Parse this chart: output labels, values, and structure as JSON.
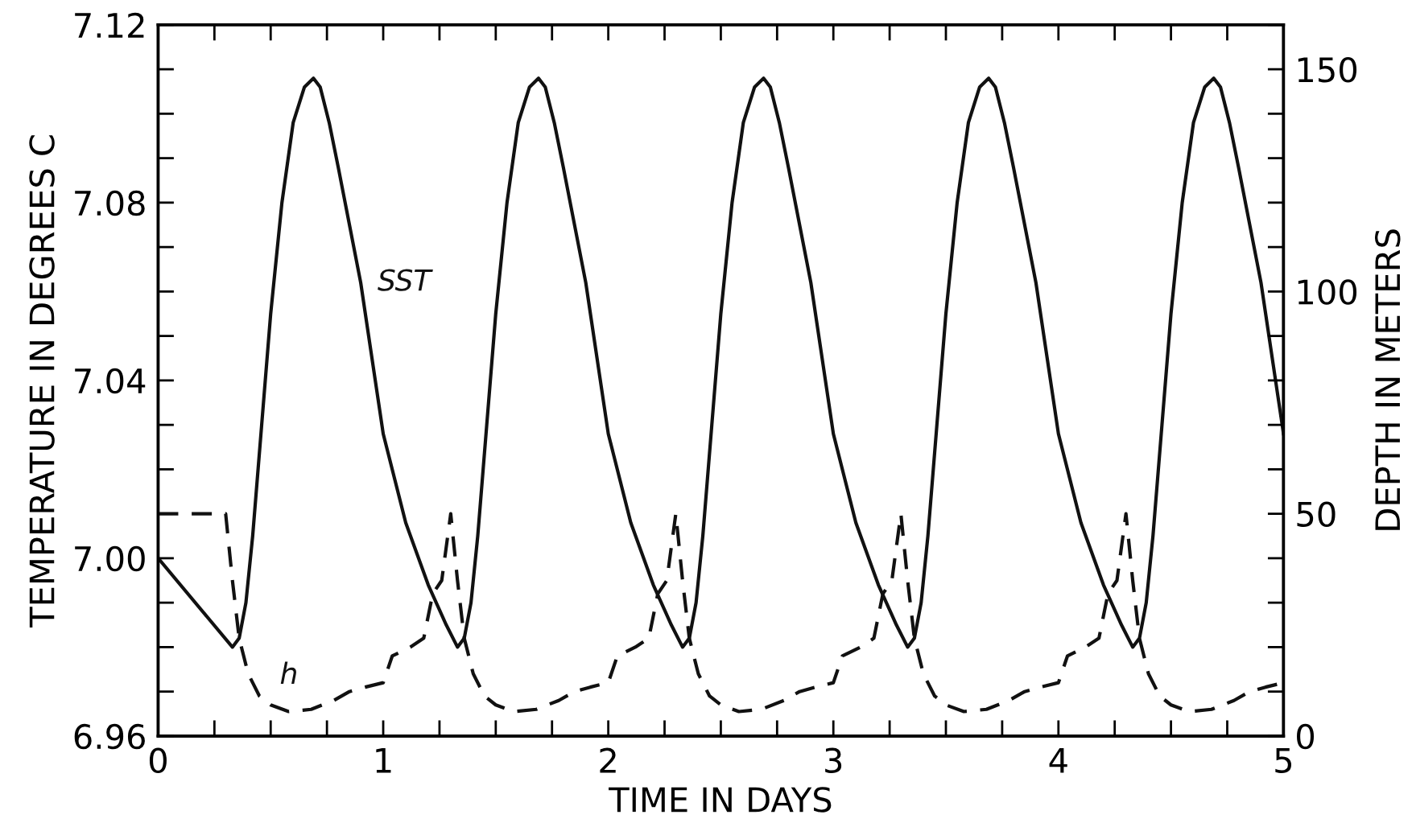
{
  "chart_data": {
    "type": "line",
    "xlabel": "TIME IN DAYS",
    "ylabel": "TEMPERATURE IN DEGREES C",
    "y2label": "DEPTH IN METERS",
    "xlim": [
      0,
      5
    ],
    "xticks": [
      0,
      1,
      2,
      3,
      4,
      5
    ],
    "ylim": [
      6.96,
      7.12
    ],
    "yticks": [
      6.96,
      {
        "value": 7.0,
        "label": "7.00"
      },
      7.04,
      7.08,
      7.12
    ],
    "y2lim": [
      0,
      160
    ],
    "y2ticks": [
      0,
      50,
      100,
      150
    ],
    "grid": false,
    "legend": false,
    "series": [
      {
        "name": "SST",
        "color": "#111111",
        "line_style": "solid",
        "x": [
          0,
          0.33,
          0.36,
          0.39,
          0.42,
          0.46,
          0.5,
          0.55,
          0.6,
          0.65,
          0.69,
          0.72,
          0.76,
          0.8,
          0.9,
          1.0,
          1.1,
          1.2,
          1.28,
          1.33,
          1.36,
          1.39,
          1.42,
          1.46,
          1.5,
          1.55,
          1.6,
          1.65,
          1.69,
          1.72,
          1.76,
          1.8,
          1.9,
          2.0,
          2.1,
          2.2,
          2.28,
          2.33,
          2.36,
          2.39,
          2.42,
          2.46,
          2.5,
          2.55,
          2.6,
          2.65,
          2.69,
          2.72,
          2.76,
          2.8,
          2.9,
          3.0,
          3.1,
          3.2,
          3.28,
          3.33,
          3.36,
          3.39,
          3.42,
          3.46,
          3.5,
          3.55,
          3.6,
          3.65,
          3.69,
          3.72,
          3.76,
          3.8,
          3.9,
          4.0,
          4.1,
          4.2,
          4.28,
          4.33,
          4.36,
          4.39,
          4.42,
          4.46,
          4.5,
          4.55,
          4.6,
          4.65,
          4.69,
          4.72,
          4.76,
          4.8,
          4.9,
          5.0
        ],
        "values": [
          7.0,
          6.98,
          6.982,
          6.99,
          7.005,
          7.03,
          7.055,
          7.08,
          7.098,
          7.106,
          7.108,
          7.106,
          7.098,
          7.088,
          7.062,
          7.028,
          7.008,
          6.994,
          6.985,
          6.98,
          6.982,
          6.99,
          7.005,
          7.03,
          7.055,
          7.08,
          7.098,
          7.106,
          7.108,
          7.106,
          7.098,
          7.088,
          7.062,
          7.028,
          7.008,
          6.994,
          6.985,
          6.98,
          6.982,
          6.99,
          7.005,
          7.03,
          7.055,
          7.08,
          7.098,
          7.106,
          7.108,
          7.106,
          7.098,
          7.088,
          7.062,
          7.028,
          7.008,
          6.994,
          6.985,
          6.98,
          6.982,
          6.99,
          7.005,
          7.03,
          7.055,
          7.08,
          7.098,
          7.106,
          7.108,
          7.106,
          7.098,
          7.088,
          7.062,
          7.028,
          7.008,
          6.994,
          6.985,
          6.98,
          6.982,
          6.99,
          7.005,
          7.03,
          7.055,
          7.08,
          7.098,
          7.106,
          7.108,
          7.106,
          7.098,
          7.088,
          7.062,
          7.028
        ]
      },
      {
        "name": "h",
        "color": "#111111",
        "line_style": "dashed",
        "axis": "y2",
        "x": [
          0,
          0.3,
          0.33,
          0.36,
          0.4,
          0.45,
          0.5,
          0.58,
          0.68,
          0.78,
          0.85,
          0.92,
          1.0,
          1.04,
          1.12,
          1.18,
          1.22,
          1.26,
          1.3,
          1.33,
          1.36,
          1.4,
          1.45,
          1.5,
          1.58,
          1.68,
          1.78,
          1.85,
          1.92,
          2.0,
          2.04,
          2.12,
          2.18,
          2.22,
          2.26,
          2.3,
          2.33,
          2.36,
          2.4,
          2.45,
          2.5,
          2.58,
          2.68,
          2.78,
          2.85,
          2.92,
          3.0,
          3.04,
          3.12,
          3.18,
          3.22,
          3.26,
          3.3,
          3.33,
          3.36,
          3.4,
          3.45,
          3.5,
          3.58,
          3.68,
          3.78,
          3.85,
          3.92,
          4.0,
          4.04,
          4.12,
          4.18,
          4.22,
          4.26,
          4.3,
          4.33,
          4.36,
          4.4,
          4.45,
          4.5,
          4.58,
          4.68,
          4.78,
          4.85,
          4.92,
          5.0
        ],
        "values": [
          50,
          50,
          35,
          22,
          14,
          9,
          7,
          5.5,
          6,
          8,
          10,
          11,
          12,
          18,
          20,
          22,
          32,
          35,
          50,
          35,
          22,
          14,
          9,
          7,
          5.5,
          6,
          8,
          10,
          11,
          12,
          18,
          20,
          22,
          32,
          35,
          50,
          35,
          22,
          14,
          9,
          7,
          5.5,
          6,
          8,
          10,
          11,
          12,
          18,
          20,
          22,
          32,
          35,
          50,
          35,
          22,
          14,
          9,
          7,
          5.5,
          6,
          8,
          10,
          11,
          12,
          18,
          20,
          22,
          32,
          35,
          50,
          35,
          22,
          14,
          9,
          7,
          5.5,
          6,
          8,
          10,
          11,
          12
        ]
      }
    ]
  }
}
